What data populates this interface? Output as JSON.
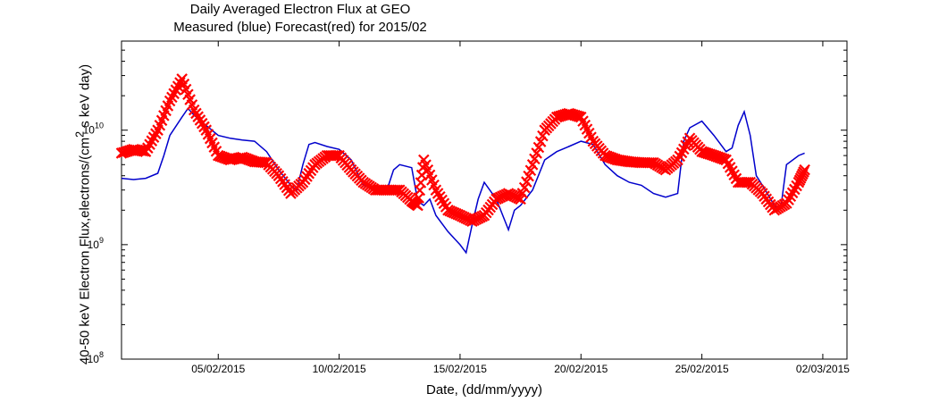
{
  "chart_data": {
    "type": "line",
    "title": "Daily Averaged Electron Flux at GEO",
    "subtitle": "Measured (blue) Forecast(red) for 2015/02",
    "xlabel": "Date, (dd/mm/yyyy)",
    "ylabel_main": "40-50 keV Electron Flux,electrons/(cm",
    "ylabel_sup": "2",
    "ylabel_tail": " s keV day)",
    "y_scale": "log",
    "ylim": [
      100000000.0,
      60000000000.0
    ],
    "xlim": [
      "2015-02-01",
      "2015-03-03"
    ],
    "x_tick_labels": [
      "05/02/2015",
      "10/02/2015",
      "15/02/2015",
      "20/02/2015",
      "25/02/2015",
      "02/03/2015"
    ],
    "x_tick_dates": [
      "2015-02-05",
      "2015-02-10",
      "2015-02-15",
      "2015-02-20",
      "2015-02-25",
      "2015-03-02"
    ],
    "y_tick_base": "10",
    "y_tick_exponents": [
      "8",
      "9",
      "10"
    ],
    "y_ticks": [
      100000000.0,
      1000000000.0,
      10000000000.0
    ],
    "grid": false,
    "series": [
      {
        "name": "Measured",
        "color": "#0000cc",
        "style": "line",
        "points": [
          [
            "2015-02-01T00:00",
            3800000000.0
          ],
          [
            "2015-02-01T12:00",
            3700000000.0
          ],
          [
            "2015-02-02T00:00",
            3800000000.0
          ],
          [
            "2015-02-02T12:00",
            4200000000.0
          ],
          [
            "2015-02-02T18:00",
            6000000000.0
          ],
          [
            "2015-02-03T00:00",
            9000000000.0
          ],
          [
            "2015-02-03T12:00",
            13000000000.0
          ],
          [
            "2015-02-03T18:00",
            15500000000.0
          ],
          [
            "2015-02-04T00:00",
            13500000000.0
          ],
          [
            "2015-02-04T12:00",
            11000000000.0
          ],
          [
            "2015-02-05T00:00",
            9000000000.0
          ],
          [
            "2015-02-05T12:00",
            8500000000.0
          ],
          [
            "2015-02-06T00:00",
            8200000000.0
          ],
          [
            "2015-02-06T12:00",
            8000000000.0
          ],
          [
            "2015-02-07T00:00",
            6500000000.0
          ],
          [
            "2015-02-07T12:00",
            4500000000.0
          ],
          [
            "2015-02-08T00:00",
            3300000000.0
          ],
          [
            "2015-02-08T06:00",
            3000000000.0
          ],
          [
            "2015-02-08T12:00",
            5000000000.0
          ],
          [
            "2015-02-08T18:00",
            7500000000.0
          ],
          [
            "2015-02-09T00:00",
            7800000000.0
          ],
          [
            "2015-02-09T12:00",
            7200000000.0
          ],
          [
            "2015-02-10T00:00",
            6800000000.0
          ],
          [
            "2015-02-10T12:00",
            5500000000.0
          ],
          [
            "2015-02-11T00:00",
            3300000000.0
          ],
          [
            "2015-02-11T12:00",
            3000000000.0
          ],
          [
            "2015-02-12T00:00",
            3100000000.0
          ],
          [
            "2015-02-12T06:00",
            4500000000.0
          ],
          [
            "2015-02-12T12:00",
            5000000000.0
          ],
          [
            "2015-02-13T00:00",
            4700000000.0
          ],
          [
            "2015-02-13T06:00",
            2400000000.0
          ],
          [
            "2015-02-13T12:00",
            2200000000.0
          ],
          [
            "2015-02-13T18:00",
            2500000000.0
          ],
          [
            "2015-02-14T00:00",
            1800000000.0
          ],
          [
            "2015-02-14T12:00",
            1300000000.0
          ],
          [
            "2015-02-15T00:00",
            1000000000.0
          ],
          [
            "2015-02-15T06:00",
            850000000.0
          ],
          [
            "2015-02-15T12:00",
            1500000000.0
          ],
          [
            "2015-02-15T18:00",
            2500000000.0
          ],
          [
            "2015-02-16T00:00",
            3500000000.0
          ],
          [
            "2015-02-16T12:00",
            2500000000.0
          ],
          [
            "2015-02-17T00:00",
            1350000000.0
          ],
          [
            "2015-02-17T06:00",
            2000000000.0
          ],
          [
            "2015-02-17T12:00",
            2200000000.0
          ],
          [
            "2015-02-18T00:00",
            3000000000.0
          ],
          [
            "2015-02-18T12:00",
            5500000000.0
          ],
          [
            "2015-02-19T00:00",
            6500000000.0
          ],
          [
            "2015-02-19T12:00",
            7200000000.0
          ],
          [
            "2015-02-20T00:00",
            8000000000.0
          ],
          [
            "2015-02-20T12:00",
            7500000000.0
          ],
          [
            "2015-02-21T00:00",
            5000000000.0
          ],
          [
            "2015-02-21T12:00",
            4000000000.0
          ],
          [
            "2015-02-22T00:00",
            3500000000.0
          ],
          [
            "2015-02-22T12:00",
            3300000000.0
          ],
          [
            "2015-02-23T00:00",
            2800000000.0
          ],
          [
            "2015-02-23T12:00",
            2600000000.0
          ],
          [
            "2015-02-24T00:00",
            2800000000.0
          ],
          [
            "2015-02-24T06:00",
            8000000000.0
          ],
          [
            "2015-02-24T12:00",
            10500000000.0
          ],
          [
            "2015-02-25T00:00",
            12000000000.0
          ],
          [
            "2015-02-25T12:00",
            9000000000.0
          ],
          [
            "2015-02-26T00:00",
            6500000000.0
          ],
          [
            "2015-02-26T06:00",
            7000000000.0
          ],
          [
            "2015-02-26T12:00",
            11000000000.0
          ],
          [
            "2015-02-26T18:00",
            14500000000.0
          ],
          [
            "2015-02-27T00:00",
            9000000000.0
          ],
          [
            "2015-02-27T06:00",
            4000000000.0
          ],
          [
            "2015-02-27T12:00",
            3300000000.0
          ],
          [
            "2015-02-28T00:00",
            2200000000.0
          ],
          [
            "2015-02-28T06:00",
            2000000000.0
          ],
          [
            "2015-02-28T12:00",
            5000000000.0
          ],
          [
            "2015-03-01T00:00",
            6000000000.0
          ],
          [
            "2015-03-01T06:00",
            6300000000.0
          ]
        ]
      },
      {
        "name": "Forecast",
        "color": "#ff0000",
        "style": "markers-x",
        "points": [
          [
            "2015-02-01T00:00",
            6300000000.0
          ],
          [
            "2015-02-01T12:00",
            6800000000.0
          ],
          [
            "2015-02-02T00:00",
            6500000000.0
          ],
          [
            "2015-02-02T12:00",
            10000000000.0
          ],
          [
            "2015-02-03T00:00",
            18000000000.0
          ],
          [
            "2015-02-03T12:00",
            28000000000.0
          ],
          [
            "2015-02-04T00:00",
            15000000000.0
          ],
          [
            "2015-02-04T12:00",
            10000000000.0
          ],
          [
            "2015-02-05T00:00",
            6000000000.0
          ],
          [
            "2015-02-05T12:00",
            5500000000.0
          ],
          [
            "2015-02-06T00:00",
            5800000000.0
          ],
          [
            "2015-02-06T12:00",
            5300000000.0
          ],
          [
            "2015-02-07T00:00",
            5200000000.0
          ],
          [
            "2015-02-07T12:00",
            4000000000.0
          ],
          [
            "2015-02-08T00:00",
            2800000000.0
          ],
          [
            "2015-02-08T12:00",
            3500000000.0
          ],
          [
            "2015-02-09T00:00",
            5000000000.0
          ],
          [
            "2015-02-09T12:00",
            6000000000.0
          ],
          [
            "2015-02-10T00:00",
            6000000000.0
          ],
          [
            "2015-02-10T12:00",
            4500000000.0
          ],
          [
            "2015-02-11T00:00",
            3500000000.0
          ],
          [
            "2015-02-11T12:00",
            3000000000.0
          ],
          [
            "2015-02-12T00:00",
            3000000000.0
          ],
          [
            "2015-02-12T12:00",
            3000000000.0
          ],
          [
            "2015-02-13T00:00",
            2400000000.0
          ],
          [
            "2015-02-13T06:00",
            2200000000.0
          ],
          [
            "2015-02-13T12:00",
            5500000000.0
          ],
          [
            "2015-02-14T00:00",
            3000000000.0
          ],
          [
            "2015-02-14T12:00",
            2000000000.0
          ],
          [
            "2015-02-15T00:00",
            1800000000.0
          ],
          [
            "2015-02-15T12:00",
            1600000000.0
          ],
          [
            "2015-02-16T00:00",
            1800000000.0
          ],
          [
            "2015-02-16T12:00",
            2500000000.0
          ],
          [
            "2015-02-17T00:00",
            2800000000.0
          ],
          [
            "2015-02-17T12:00",
            2500000000.0
          ],
          [
            "2015-02-18T00:00",
            5000000000.0
          ],
          [
            "2015-02-18T12:00",
            10000000000.0
          ],
          [
            "2015-02-19T00:00",
            13000000000.0
          ],
          [
            "2015-02-19T12:00",
            14000000000.0
          ],
          [
            "2015-02-20T00:00",
            13000000000.0
          ],
          [
            "2015-02-20T12:00",
            8000000000.0
          ],
          [
            "2015-02-21T00:00",
            6000000000.0
          ],
          [
            "2015-02-21T12:00",
            5500000000.0
          ],
          [
            "2015-02-22T00:00",
            5300000000.0
          ],
          [
            "2015-02-22T12:00",
            5200000000.0
          ],
          [
            "2015-02-23T00:00",
            5200000000.0
          ],
          [
            "2015-02-23T12:00",
            4500000000.0
          ],
          [
            "2015-02-24T00:00",
            5500000000.0
          ],
          [
            "2015-02-24T12:00",
            8500000000.0
          ],
          [
            "2015-02-25T00:00",
            6500000000.0
          ],
          [
            "2015-02-25T12:00",
            6000000000.0
          ],
          [
            "2015-02-26T00:00",
            5500000000.0
          ],
          [
            "2015-02-26T12:00",
            3500000000.0
          ],
          [
            "2015-02-27T00:00",
            3500000000.0
          ],
          [
            "2015-02-27T12:00",
            2800000000.0
          ],
          [
            "2015-02-28T00:00",
            2000000000.0
          ],
          [
            "2015-02-28T12:00",
            2300000000.0
          ],
          [
            "2015-03-01T00:00",
            3500000000.0
          ],
          [
            "2015-03-01T06:00",
            4500000000.0
          ]
        ]
      }
    ]
  }
}
